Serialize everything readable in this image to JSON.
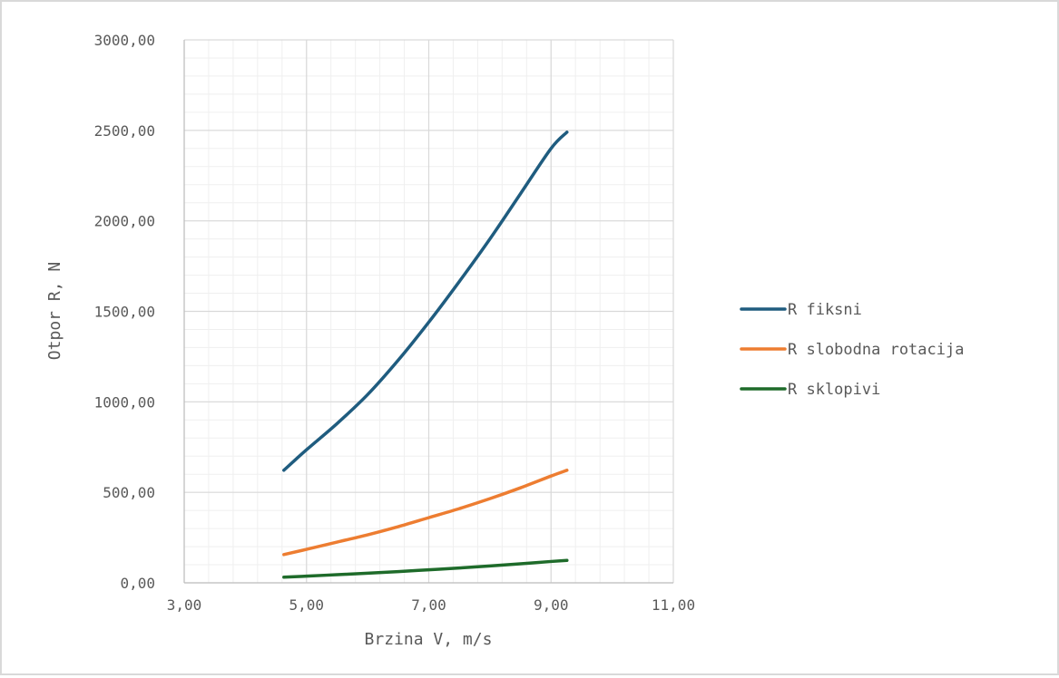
{
  "chart_data": {
    "type": "line",
    "title": "",
    "xlabel": "Brzina V, m/s",
    "ylabel": "Otpor R, N",
    "xlim": [
      3,
      11
    ],
    "ylim": [
      0,
      3000
    ],
    "x_ticks": [
      3,
      5,
      7,
      9,
      11
    ],
    "y_ticks": [
      0,
      500,
      1000,
      1500,
      2000,
      2500,
      3000
    ],
    "x_tick_labels": [
      "3,00",
      "5,00",
      "7,00",
      "9,00",
      "11,00"
    ],
    "y_tick_labels": [
      "0,00",
      "500,00",
      "1000,00",
      "1500,00",
      "2000,00",
      "2500,00",
      "3000,00"
    ],
    "grid": true,
    "minor_grid": true,
    "legend_position": "right",
    "series": [
      {
        "name": "R fiksni",
        "color": "#1f5c7f",
        "x": [
          4.63,
          5.0,
          5.5,
          6.0,
          6.5,
          7.0,
          7.5,
          8.0,
          8.5,
          9.0,
          9.26
        ],
        "y": [
          622,
          735,
          880,
          1040,
          1230,
          1440,
          1665,
          1900,
          2150,
          2400,
          2490
        ]
      },
      {
        "name": "R slobodna rotacija",
        "color": "#ed7d31",
        "x": [
          4.63,
          5.0,
          5.5,
          6.0,
          6.5,
          7.0,
          7.5,
          8.0,
          8.5,
          9.0,
          9.26
        ],
        "y": [
          156,
          185,
          225,
          265,
          310,
          360,
          410,
          465,
          525,
          590,
          622
        ]
      },
      {
        "name": "R sklopivi",
        "color": "#1e6b2a",
        "x": [
          4.63,
          5.0,
          5.5,
          6.0,
          6.5,
          7.0,
          7.5,
          8.0,
          8.5,
          9.0,
          9.26
        ],
        "y": [
          31,
          37,
          45,
          53,
          62,
          72,
          82,
          93,
          105,
          118,
          124
        ]
      }
    ]
  }
}
